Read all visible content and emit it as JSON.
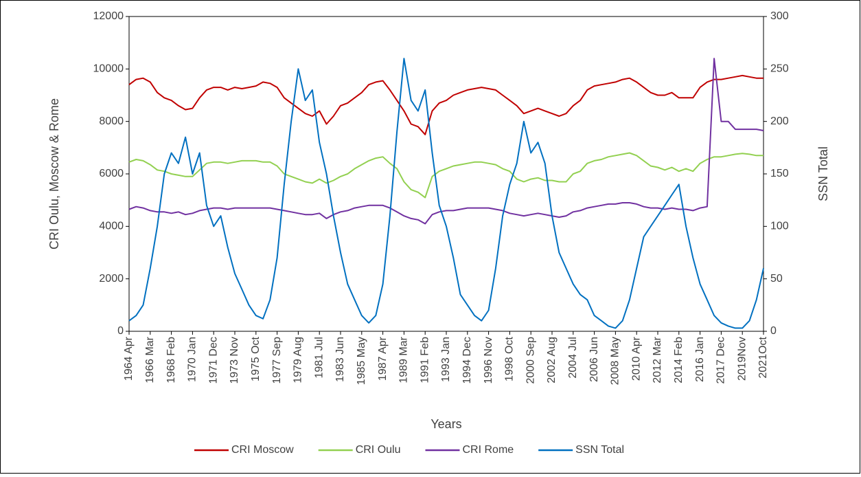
{
  "chart_data": {
    "type": "line",
    "y_label": "CRI Oulu, Moscow & Rome",
    "y2_label": "SSN Total",
    "x_label": "Years",
    "categories": [
      "1964 Apr",
      null,
      null,
      "1966 Mar",
      null,
      null,
      "1968 Feb",
      null,
      null,
      "1970 Jan",
      null,
      null,
      "1971 Dec",
      null,
      null,
      "1973 Nov",
      null,
      null,
      "1975 Oct",
      null,
      null,
      "1977 Sep",
      null,
      null,
      "1979 Aug",
      null,
      null,
      "1981 Jul",
      null,
      null,
      "1983 Jun",
      null,
      null,
      "1985 May",
      null,
      null,
      "1987 Apr",
      null,
      null,
      "1989 Mar",
      null,
      null,
      "1991 Feb",
      null,
      null,
      "1993 Jan",
      null,
      null,
      "1994 Dec",
      null,
      null,
      "1996 Nov",
      null,
      null,
      "1998 Oct",
      null,
      null,
      "2000 Sep",
      null,
      null,
      "2002 Aug",
      null,
      null,
      "2004 Jul",
      null,
      null,
      "2006 Jun",
      null,
      null,
      "2008 May",
      null,
      null,
      "2010 Apr",
      null,
      null,
      "2012 Mar",
      null,
      null,
      "2014 Feb",
      null,
      null,
      "2016 Jan",
      null,
      null,
      "2017 Dec",
      null,
      null,
      "2019Nov",
      null,
      null,
      "2021Oct"
    ],
    "series": [
      {
        "name": "CRI Moscow",
        "color": "#c00000",
        "axis": "y",
        "values": [
          9400,
          9600,
          9650,
          9500,
          9100,
          8900,
          8800,
          8600,
          8450,
          8500,
          8900,
          9200,
          9300,
          9300,
          9200,
          9300,
          9250,
          9300,
          9350,
          9500,
          9450,
          9300,
          8900,
          8700,
          8500,
          8300,
          8200,
          8400,
          7900,
          8200,
          8600,
          8700,
          8900,
          9100,
          9400,
          9500,
          9550,
          9200,
          8800,
          8400,
          7900,
          7800,
          7500,
          8400,
          8700,
          8800,
          9000,
          9100,
          9200,
          9250,
          9300,
          9250,
          9200,
          9000,
          8800,
          8600,
          8300,
          8400,
          8500,
          8400,
          8300,
          8200,
          8300,
          8600,
          8800,
          9200,
          9350,
          9400,
          9450,
          9500,
          9600,
          9650,
          9500,
          9300,
          9100,
          9000,
          9000,
          9100,
          8900,
          8900,
          8900,
          9300,
          9500,
          9600,
          9600,
          9650,
          9700,
          9750,
          9700,
          9650,
          9650
        ]
      },
      {
        "name": "CRI Oulu",
        "color": "#92d050",
        "axis": "y",
        "values": [
          6450,
          6550,
          6500,
          6350,
          6150,
          6100,
          6000,
          5950,
          5900,
          5900,
          6150,
          6400,
          6450,
          6450,
          6400,
          6450,
          6500,
          6500,
          6500,
          6450,
          6450,
          6300,
          6000,
          5900,
          5800,
          5700,
          5650,
          5800,
          5650,
          5750,
          5900,
          6000,
          6200,
          6350,
          6500,
          6600,
          6650,
          6400,
          6200,
          5700,
          5400,
          5300,
          5100,
          5900,
          6100,
          6200,
          6300,
          6350,
          6400,
          6450,
          6450,
          6400,
          6350,
          6200,
          6100,
          5800,
          5700,
          5800,
          5850,
          5750,
          5750,
          5700,
          5700,
          6000,
          6100,
          6400,
          6500,
          6550,
          6650,
          6700,
          6750,
          6800,
          6700,
          6500,
          6300,
          6250,
          6150,
          6250,
          6100,
          6200,
          6100,
          6400,
          6550,
          6650,
          6650,
          6700,
          6750,
          6780,
          6750,
          6700,
          6700
        ]
      },
      {
        "name": "CRI Rome",
        "color": "#7030a0",
        "axis": "y",
        "values": [
          4650,
          4750,
          4700,
          4600,
          4550,
          4550,
          4500,
          4550,
          4450,
          4500,
          4600,
          4650,
          4700,
          4700,
          4650,
          4700,
          4700,
          4700,
          4700,
          4700,
          4700,
          4650,
          4600,
          4550,
          4500,
          4450,
          4450,
          4500,
          4300,
          4450,
          4550,
          4600,
          4700,
          4750,
          4800,
          4800,
          4800,
          4700,
          4550,
          4400,
          4300,
          4250,
          4100,
          4450,
          4550,
          4600,
          4600,
          4650,
          4700,
          4700,
          4700,
          4700,
          4650,
          4600,
          4500,
          4450,
          4400,
          4450,
          4500,
          4450,
          4400,
          4350,
          4400,
          4550,
          4600,
          4700,
          4750,
          4800,
          4850,
          4850,
          4900,
          4900,
          4850,
          4750,
          4700,
          4700,
          4650,
          4700,
          4650,
          4650,
          4600,
          4700,
          4750,
          10400,
          8000,
          8000,
          7700,
          7700,
          7700,
          7700,
          7650
        ]
      },
      {
        "name": "SSN Total",
        "color": "#0070c0",
        "axis": "y2",
        "values": [
          10,
          15,
          25,
          60,
          100,
          150,
          170,
          160,
          185,
          150,
          170,
          120,
          100,
          110,
          80,
          55,
          40,
          25,
          15,
          12,
          30,
          70,
          140,
          200,
          250,
          220,
          230,
          180,
          150,
          110,
          75,
          45,
          30,
          15,
          8,
          15,
          45,
          110,
          190,
          260,
          220,
          210,
          230,
          170,
          120,
          100,
          70,
          35,
          25,
          15,
          10,
          20,
          60,
          110,
          140,
          160,
          200,
          170,
          180,
          160,
          110,
          75,
          60,
          45,
          35,
          30,
          15,
          10,
          5,
          3,
          10,
          30,
          60,
          90,
          100,
          110,
          120,
          130,
          140,
          100,
          70,
          45,
          30,
          15,
          8,
          5,
          3,
          3,
          10,
          30,
          60
        ]
      }
    ],
    "ylim": [
      0,
      12000
    ],
    "yticks": [
      0,
      2000,
      4000,
      6000,
      8000,
      10000,
      12000
    ],
    "y2lim": [
      0,
      300
    ],
    "y2ticks": [
      0,
      50,
      100,
      150,
      200,
      250,
      300
    ]
  }
}
